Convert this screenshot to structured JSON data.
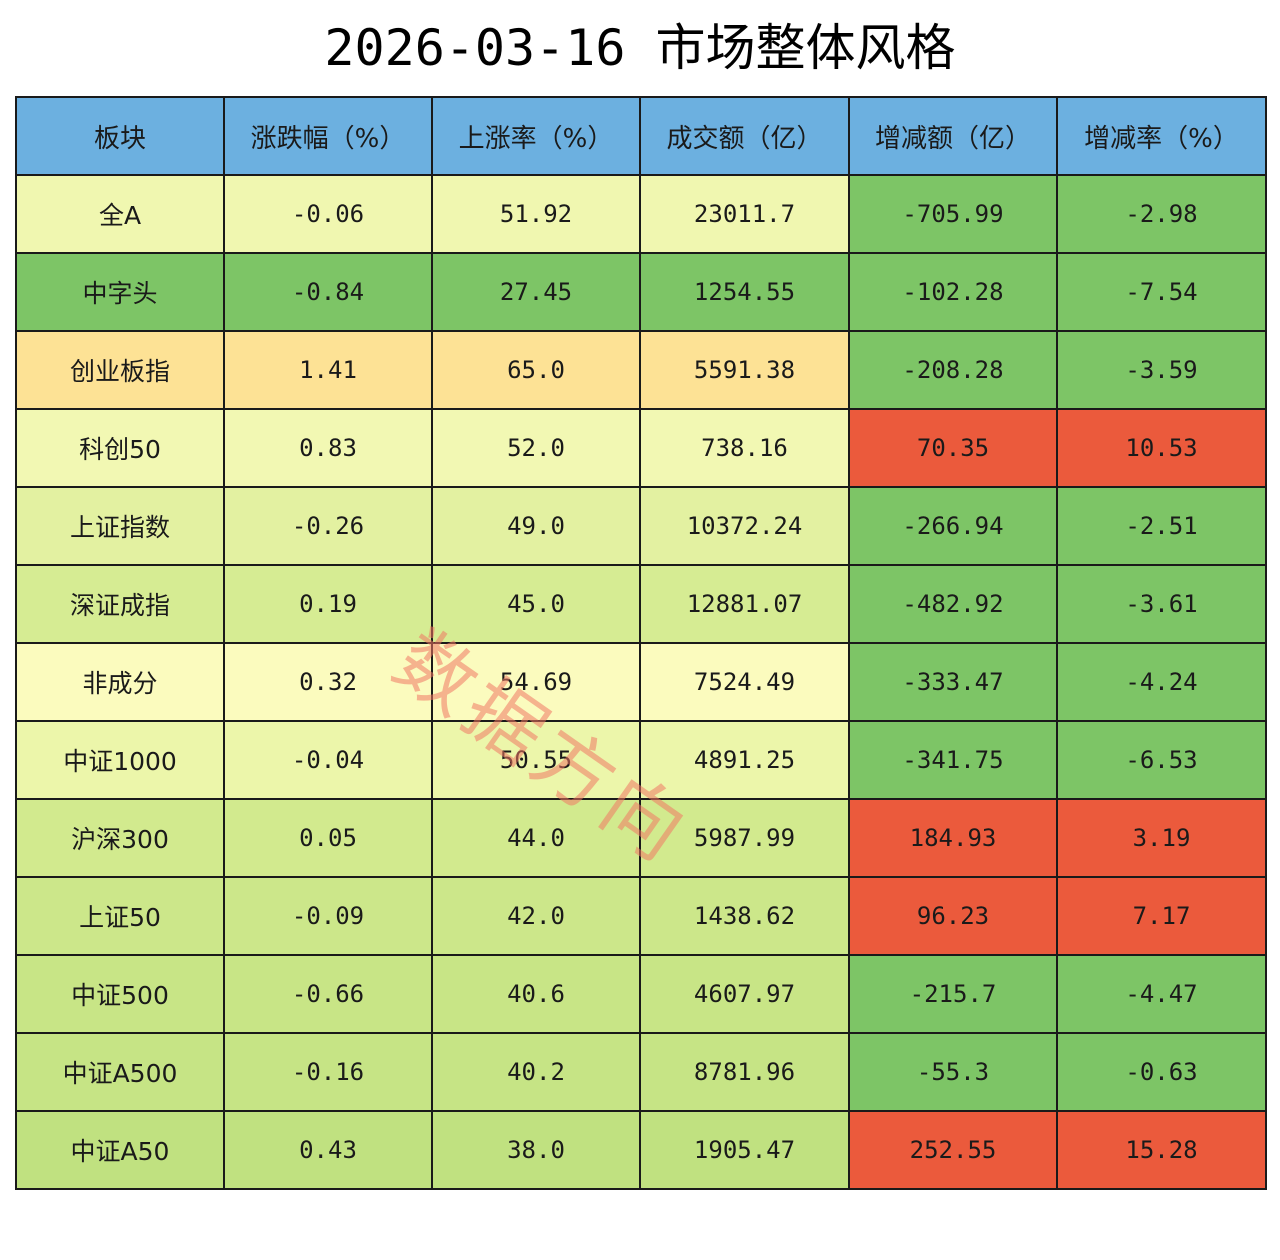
{
  "title": "2026-03-16 市场整体风格",
  "watermark": "数据方向",
  "colors": {
    "header": "#6cb0e0",
    "up_red": "#eb5a3c",
    "down_green": "#7dc566"
  },
  "chart_data": {
    "type": "table",
    "columns": [
      "板块",
      "涨跌幅（%）",
      "上涨率（%）",
      "成交额（亿）",
      "增减额（亿）",
      "增减率（%）"
    ],
    "rows": [
      {
        "cells": [
          "全A",
          "-0.06",
          "51.92",
          "23011.7",
          "-705.99",
          "-2.98"
        ],
        "colors": [
          "#f0f7b0",
          "#f0f7b0",
          "#f0f7b0",
          "#f0f7b0",
          "#7dc566",
          "#7dc566"
        ]
      },
      {
        "cells": [
          "中字头",
          "-0.84",
          "27.45",
          "1254.55",
          "-102.28",
          "-7.54"
        ],
        "colors": [
          "#7dc566",
          "#7dc566",
          "#7dc566",
          "#7dc566",
          "#7dc566",
          "#7dc566"
        ]
      },
      {
        "cells": [
          "创业板指",
          "1.41",
          "65.0",
          "5591.38",
          "-208.28",
          "-3.59"
        ],
        "colors": [
          "#fde295",
          "#fde295",
          "#fde295",
          "#fde295",
          "#7dc566",
          "#7dc566"
        ]
      },
      {
        "cells": [
          "科创50",
          "0.83",
          "52.0",
          "738.16",
          "70.35",
          "10.53"
        ],
        "colors": [
          "#f2f8b3",
          "#f2f8b3",
          "#f2f8b3",
          "#f2f8b3",
          "#eb5a3c",
          "#eb5a3c"
        ]
      },
      {
        "cells": [
          "上证指数",
          "-0.26",
          "49.0",
          "10372.24",
          "-266.94",
          "-2.51"
        ],
        "colors": [
          "#e3f1a1",
          "#e3f1a1",
          "#e3f1a1",
          "#e3f1a1",
          "#7dc566",
          "#7dc566"
        ]
      },
      {
        "cells": [
          "深证成指",
          "0.19",
          "45.0",
          "12881.07",
          "-482.92",
          "-3.61"
        ],
        "colors": [
          "#d6ec93",
          "#d6ec93",
          "#d6ec93",
          "#d6ec93",
          "#7dc566",
          "#7dc566"
        ]
      },
      {
        "cells": [
          "非成分",
          "0.32",
          "54.69",
          "7524.49",
          "-333.47",
          "-4.24"
        ],
        "colors": [
          "#fbfbbe",
          "#fbfbbe",
          "#fbfbbe",
          "#fbfbbe",
          "#7dc566",
          "#7dc566"
        ]
      },
      {
        "cells": [
          "中证1000",
          "-0.04",
          "50.55",
          "4891.25",
          "-341.75",
          "-6.53"
        ],
        "colors": [
          "#ecf6aa",
          "#ecf6aa",
          "#ecf6aa",
          "#ecf6aa",
          "#7dc566",
          "#7dc566"
        ]
      },
      {
        "cells": [
          "沪深300",
          "0.05",
          "44.0",
          "5987.99",
          "184.93",
          "3.19"
        ],
        "colors": [
          "#d2ea8e",
          "#d2ea8e",
          "#d2ea8e",
          "#d2ea8e",
          "#eb5a3c",
          "#eb5a3c"
        ]
      },
      {
        "cells": [
          "上证50",
          "-0.09",
          "42.0",
          "1438.62",
          "96.23",
          "7.17"
        ],
        "colors": [
          "#cce78a",
          "#cce78a",
          "#cce78a",
          "#cce78a",
          "#eb5a3c",
          "#eb5a3c"
        ]
      },
      {
        "cells": [
          "中证500",
          "-0.66",
          "40.6",
          "4607.97",
          "-215.7",
          "-4.47"
        ],
        "colors": [
          "#c8e586",
          "#c8e586",
          "#c8e586",
          "#c8e586",
          "#7dc566",
          "#7dc566"
        ]
      },
      {
        "cells": [
          "中证A500",
          "-0.16",
          "40.2",
          "8781.96",
          "-55.3",
          "-0.63"
        ],
        "colors": [
          "#c6e485",
          "#c6e485",
          "#c6e485",
          "#c6e485",
          "#7dc566",
          "#7dc566"
        ]
      },
      {
        "cells": [
          "中证A50",
          "0.43",
          "38.0",
          "1905.47",
          "252.55",
          "15.28"
        ],
        "colors": [
          "#c0e180",
          "#c0e180",
          "#c0e180",
          "#c0e180",
          "#eb5a3c",
          "#eb5a3c"
        ]
      }
    ]
  }
}
